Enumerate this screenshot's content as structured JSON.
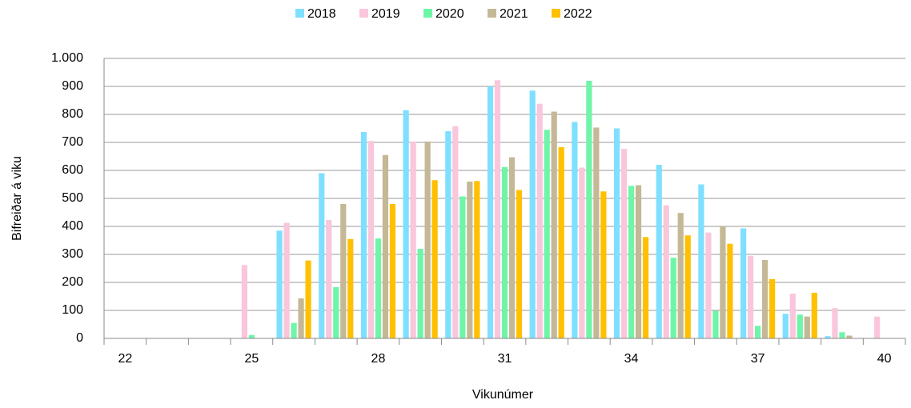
{
  "chart_data": {
    "type": "bar",
    "x_label": "Vikunúmer",
    "y_label": "Bifreiðar á viku",
    "categories": [
      "22",
      null,
      null,
      "25",
      null,
      null,
      "28",
      null,
      null,
      "31",
      null,
      null,
      "34",
      null,
      null,
      "37",
      null,
      null,
      "40"
    ],
    "series": [
      {
        "name": "2018",
        "color": "#7fdfff",
        "values": [
          0,
          0,
          0,
          0,
          385,
          590,
          737,
          815,
          740,
          900,
          885,
          773,
          750,
          620,
          550,
          393,
          88,
          8,
          0
        ]
      },
      {
        "name": "2019",
        "color": "#f9c6dc",
        "values": [
          0,
          0,
          0,
          262,
          413,
          423,
          705,
          703,
          758,
          922,
          838,
          610,
          677,
          475,
          378,
          295,
          160,
          108,
          78
        ]
      },
      {
        "name": "2020",
        "color": "#6ff5a8",
        "values": [
          0,
          0,
          0,
          12,
          55,
          183,
          357,
          320,
          507,
          612,
          745,
          920,
          545,
          288,
          98,
          45,
          85,
          22,
          0
        ]
      },
      {
        "name": "2021",
        "color": "#c4b896",
        "values": [
          0,
          0,
          0,
          0,
          143,
          480,
          655,
          703,
          560,
          647,
          810,
          753,
          547,
          448,
          400,
          280,
          78,
          10,
          0
        ]
      },
      {
        "name": "2022",
        "color": "#ffc000",
        "values": [
          0,
          0,
          0,
          0,
          278,
          355,
          480,
          565,
          562,
          530,
          683,
          525,
          362,
          368,
          338,
          212,
          163,
          0,
          0
        ]
      }
    ],
    "ylim": [
      0,
      1000
    ],
    "yticks": [
      0,
      100,
      200,
      300,
      400,
      500,
      600,
      700,
      800,
      900,
      {
        "value": 1000,
        "label": "1.000"
      }
    ],
    "grid": true,
    "legend": "top"
  }
}
